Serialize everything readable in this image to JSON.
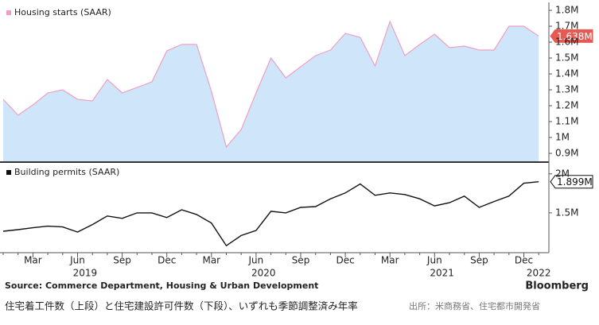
{
  "chart_data": [
    {
      "type": "area",
      "series": [
        {
          "name": "Housing starts (SAAR)",
          "color": "#ef9fc0",
          "fill": "#cfe5fa",
          "values": [
            1.24,
            1.14,
            1.205,
            1.28,
            1.3,
            1.24,
            1.23,
            1.365,
            1.28,
            1.315,
            1.35,
            1.545,
            1.585,
            1.585,
            1.29,
            0.94,
            1.05,
            1.28,
            1.5,
            1.375,
            1.445,
            1.515,
            1.55,
            1.655,
            1.63,
            1.45,
            1.73,
            1.515,
            1.585,
            1.65,
            1.565,
            1.575,
            1.55,
            1.55,
            1.7,
            1.7,
            1.638
          ],
          "value_labels": [
            null,
            null,
            null,
            null,
            null,
            null,
            null,
            null,
            null,
            null,
            null,
            null,
            null,
            null,
            null,
            null,
            null,
            null,
            null,
            null,
            null,
            null,
            null,
            null,
            null,
            null,
            null,
            null,
            null,
            null,
            null,
            null,
            null,
            null,
            null,
            null,
            "1.638M"
          ],
          "tag_color": "#e65a52"
        }
      ],
      "ylim": [
        0.85,
        1.84
      ],
      "yticks": [
        {
          "value": 0.9,
          "label": "0.9M"
        },
        {
          "value": 1,
          "label": "1M"
        },
        {
          "value": 1.1,
          "label": "1.1M"
        },
        {
          "value": 1.2,
          "label": "1.2M"
        },
        {
          "value": 1.3,
          "label": "1.3M"
        },
        {
          "value": 1.4,
          "label": "1.4M"
        },
        {
          "value": 1.5,
          "label": "1.5M"
        },
        {
          "value": 1.6,
          "label": "1.6M"
        },
        {
          "value": 1.7,
          "label": "1.7M"
        },
        {
          "value": 1.8,
          "label": "1.8M"
        }
      ]
    },
    {
      "type": "line",
      "series": [
        {
          "name": "Building permits (SAAR)",
          "color": "#111111",
          "values": [
            1.265,
            1.285,
            1.31,
            1.33,
            1.32,
            1.255,
            1.35,
            1.46,
            1.43,
            1.5,
            1.5,
            1.44,
            1.54,
            1.48,
            1.37,
            1.08,
            1.21,
            1.275,
            1.52,
            1.5,
            1.57,
            1.58,
            1.68,
            1.755,
            1.87,
            1.725,
            1.755,
            1.735,
            1.68,
            1.59,
            1.63,
            1.715,
            1.57,
            1.645,
            1.715,
            1.88,
            1.899
          ],
          "value_labels": [
            null,
            null,
            null,
            null,
            null,
            null,
            null,
            null,
            null,
            null,
            null,
            null,
            null,
            null,
            null,
            null,
            null,
            null,
            null,
            null,
            null,
            null,
            null,
            null,
            null,
            null,
            null,
            null,
            null,
            null,
            null,
            null,
            null,
            null,
            null,
            null,
            "1.899M"
          ],
          "tag_color": "#ffffff"
        }
      ],
      "categories": [
        null,
        null,
        "Mar",
        null,
        null,
        "Jun",
        null,
        null,
        "Sep",
        null,
        null,
        "Dec",
        null,
        null,
        "Mar",
        null,
        null,
        "Jun",
        null,
        null,
        "Sep",
        null,
        null,
        "Dec",
        null,
        null,
        "Mar",
        null,
        null,
        "Jun",
        null,
        null,
        "Sep",
        null,
        null,
        "Dec",
        null
      ],
      "year_labels": [
        "2019",
        "2020",
        "2021",
        "2022"
      ],
      "ylim": [
        0.99,
        2.13
      ],
      "yticks": [
        {
          "value": 1.5,
          "label": "1.5M"
        },
        {
          "value": 2,
          "label": "2M"
        }
      ]
    }
  ],
  "source": "Source: Commerce Department, Housing & Urban Development",
  "brand": "Bloomberg",
  "caption": "住宅着工件数（上段）と住宅建設許可件数（下段）、いずれも季節調整済み年率",
  "caption_source": "出所：米商務省、住宅都市開発省"
}
